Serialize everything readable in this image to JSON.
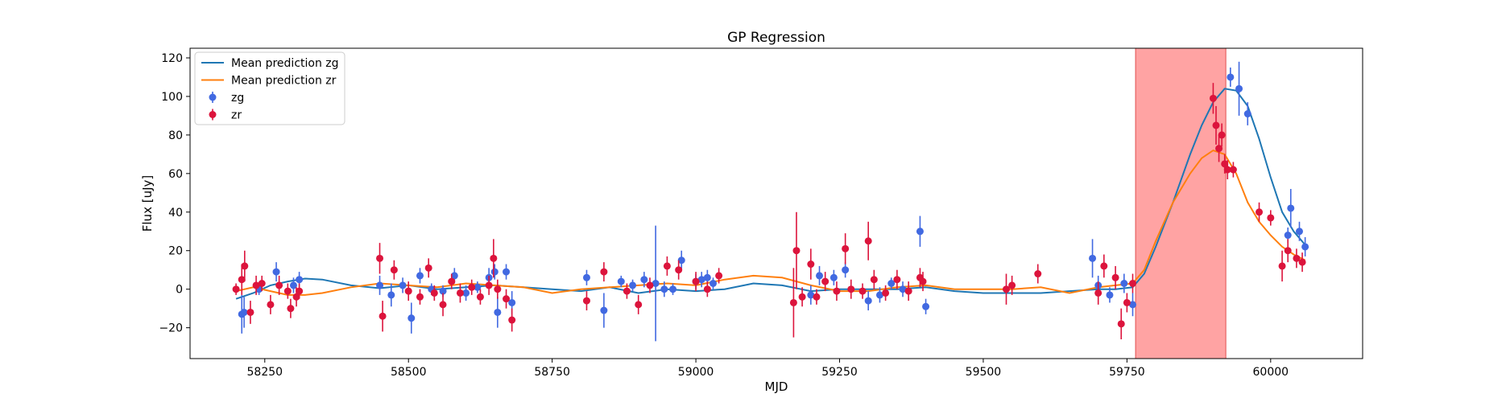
{
  "chart_data": {
    "type": "scatter",
    "title": "GP Regression",
    "xlabel": "MJD",
    "ylabel": "Flux [uJy]",
    "xlim": [
      58120,
      60160
    ],
    "ylim": [
      -36,
      125
    ],
    "xticks": [
      58250,
      58500,
      58750,
      59000,
      59250,
      59500,
      59750,
      60000
    ],
    "yticks": [
      -20,
      0,
      20,
      40,
      60,
      80,
      100,
      120
    ],
    "grid": false,
    "legend_position": "top-left",
    "shaded_region": {
      "x": [
        59765,
        59922
      ],
      "color": "#ff6666"
    },
    "series": [
      {
        "name": "Mean prediction zg",
        "kind": "line",
        "color": "#1f77b4",
        "x": [
          58200,
          58230,
          58260,
          58290,
          58320,
          58350,
          58400,
          58450,
          58500,
          58550,
          58600,
          58650,
          58700,
          58750,
          58800,
          58850,
          58900,
          58950,
          59000,
          59050,
          59100,
          59150,
          59200,
          59250,
          59300,
          59350,
          59400,
          59450,
          59500,
          59550,
          59600,
          59650,
          59700,
          59730,
          59760,
          59780,
          59800,
          59830,
          59860,
          59880,
          59900,
          59920,
          59940,
          59960,
          59980,
          60000,
          60020,
          60040,
          60060
        ],
        "y": [
          -5,
          -2,
          2,
          4,
          5.5,
          5,
          2,
          0.5,
          2,
          0,
          1,
          2,
          1,
          0,
          -1,
          1,
          -2,
          0,
          -1,
          0,
          3,
          2,
          -1,
          0,
          0,
          0,
          1,
          -1,
          -2,
          -2,
          -2,
          -1,
          0,
          0,
          1,
          8,
          22,
          45,
          70,
          85,
          97,
          104,
          103,
          95,
          78,
          58,
          40,
          30,
          23
        ]
      },
      {
        "name": "Mean prediction zr",
        "kind": "line",
        "color": "#ff7f0e",
        "x": [
          58200,
          58230,
          58260,
          58290,
          58320,
          58350,
          58400,
          58450,
          58500,
          58550,
          58600,
          58650,
          58700,
          58750,
          58800,
          58850,
          58900,
          58950,
          59000,
          59050,
          59100,
          59150,
          59200,
          59250,
          59300,
          59350,
          59400,
          59450,
          59500,
          59550,
          59600,
          59650,
          59700,
          59730,
          59760,
          59780,
          59800,
          59830,
          59860,
          59880,
          59900,
          59920,
          59940,
          59960,
          59980,
          60000,
          60020,
          60040,
          60060
        ],
        "y": [
          -1,
          1,
          -1,
          -3,
          -3,
          -2,
          1,
          3,
          2,
          1,
          3,
          2,
          1,
          -2,
          0,
          1,
          2,
          3,
          2,
          5,
          7,
          6,
          2,
          -1,
          -1,
          1,
          2,
          0,
          0,
          0,
          1,
          -2,
          1,
          2,
          3,
          10,
          25,
          45,
          60,
          68,
          72,
          70,
          60,
          45,
          35,
          28,
          22,
          18,
          15
        ]
      },
      {
        "name": "zg",
        "kind": "errorbar",
        "color": "#4169e1",
        "x": [
          58210,
          58214,
          58240,
          58270,
          58300,
          58310,
          58450,
          58470,
          58490,
          58505,
          58520,
          58540,
          58560,
          58580,
          58600,
          58620,
          58640,
          58650,
          58655,
          58670,
          58680,
          58810,
          58840,
          58870,
          58890,
          58910,
          58930,
          58945,
          58960,
          58975,
          59000,
          59010,
          59020,
          59030,
          59200,
          59215,
          59240,
          59260,
          59300,
          59320,
          59340,
          59360,
          59390,
          59400,
          59690,
          59700,
          59720,
          59745,
          59760,
          59930,
          59945,
          59960,
          60030,
          60035,
          60050,
          60060
        ],
        "y": [
          -13,
          -12,
          0,
          9,
          2,
          5,
          2,
          -3,
          2,
          -15,
          7,
          0,
          -1,
          7,
          -2,
          1,
          6,
          9,
          -12,
          9,
          -7,
          6,
          -11,
          4,
          2,
          5,
          3,
          0,
          0,
          15,
          4,
          5,
          6,
          3,
          -3,
          7,
          6,
          10,
          -6,
          -3,
          3,
          0,
          30,
          -9,
          16,
          2,
          -3,
          3,
          -8,
          110,
          104,
          91,
          28,
          42,
          30,
          22
        ],
        "err": [
          10,
          8,
          3,
          5,
          4,
          4,
          5,
          6,
          4,
          8,
          4,
          3,
          3,
          4,
          4,
          3,
          5,
          4,
          8,
          4,
          6,
          4,
          9,
          3,
          3,
          4,
          30,
          4,
          3,
          5,
          4,
          4,
          4,
          3,
          5,
          5,
          4,
          4,
          5,
          4,
          3,
          4,
          8,
          4,
          10,
          5,
          4,
          5,
          6,
          5,
          14,
          6,
          4,
          10,
          5,
          5
        ]
      },
      {
        "name": "zr",
        "kind": "errorbar",
        "color": "#dc143c",
        "x": [
          58200,
          58210,
          58215,
          58225,
          58235,
          58245,
          58260,
          58275,
          58290,
          58295,
          58305,
          58310,
          58450,
          58455,
          58475,
          58500,
          58520,
          58535,
          58545,
          58560,
          58575,
          58590,
          58610,
          58625,
          58640,
          58648,
          58655,
          58670,
          58680,
          58810,
          58840,
          58880,
          58900,
          58920,
          58950,
          58970,
          59000,
          59020,
          59040,
          59170,
          59175,
          59185,
          59200,
          59210,
          59225,
          59245,
          59260,
          59270,
          59290,
          59300,
          59310,
          59330,
          59350,
          59370,
          59390,
          59395,
          59540,
          59550,
          59595,
          59700,
          59710,
          59730,
          59740,
          59750,
          59760,
          59900,
          59905,
          59910,
          59915,
          59920,
          59925,
          59935,
          59980,
          60000,
          60020,
          60030,
          60045,
          60055
        ],
        "y": [
          0,
          5,
          12,
          -12,
          2,
          3,
          -8,
          2,
          -1,
          -10,
          -4,
          -1,
          16,
          -14,
          10,
          -1,
          -4,
          11,
          -2,
          -8,
          4,
          -2,
          1,
          -4,
          2,
          16,
          0,
          -5,
          -16,
          -6,
          9,
          -1,
          -8,
          2,
          12,
          10,
          4,
          0,
          7,
          -7,
          20,
          -4,
          13,
          -4,
          4,
          -1,
          21,
          0,
          -1,
          25,
          5,
          -2,
          5,
          -1,
          6,
          4,
          0,
          2,
          8,
          -2,
          12,
          6,
          -18,
          -7,
          3,
          99,
          85,
          73,
          80,
          65,
          62,
          62,
          40,
          37,
          12,
          20,
          16,
          14
        ],
        "err": [
          3,
          8,
          8,
          6,
          5,
          4,
          5,
          5,
          4,
          5,
          5,
          4,
          8,
          8,
          5,
          5,
          4,
          5,
          4,
          6,
          4,
          5,
          4,
          4,
          5,
          10,
          5,
          5,
          6,
          5,
          5,
          4,
          5,
          4,
          5,
          5,
          5,
          4,
          4,
          18,
          20,
          5,
          8,
          4,
          5,
          5,
          8,
          5,
          4,
          10,
          5,
          4,
          5,
          5,
          5,
          5,
          8,
          5,
          5,
          6,
          6,
          6,
          8,
          5,
          5,
          8,
          10,
          7,
          6,
          5,
          5,
          4,
          5,
          4,
          8,
          6,
          5,
          5
        ]
      }
    ]
  }
}
